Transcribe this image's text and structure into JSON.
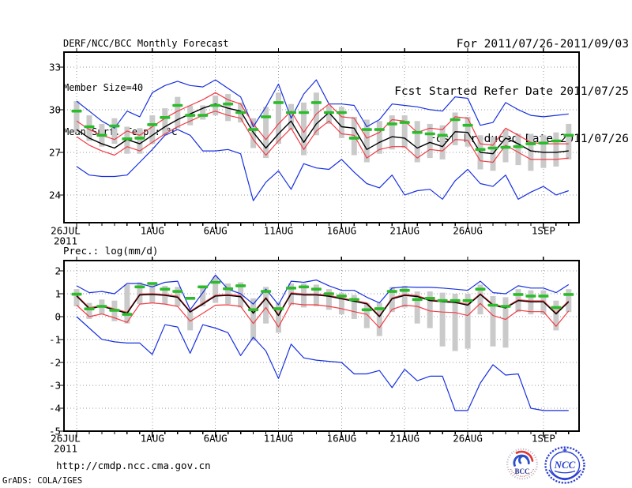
{
  "header": {
    "left_lines": [
      "DERF/NCC/BCC Monthly Forecast",
      "Member Size=40",
      "Mean Surf. Temp.: °C"
    ],
    "right_lines": [
      "For 2011/07/26-2011/09/03",
      "Fcst Started Refer Date 2011/07/25",
      "Fcst Produced Date 2011/07/26"
    ]
  },
  "footer": {
    "url": "http://cmdp.ncc.cma.gov.cn",
    "credit": "GrADS: COLA/IGES"
  },
  "logos": {
    "bcc_label": "BCC",
    "ncc_label": "NCC"
  },
  "colors": {
    "blue": "#1730e0",
    "red": "#f23c46",
    "black": "#000000",
    "green": "#2abc2a",
    "bar": "#cacaca",
    "grid": "#999999"
  },
  "chart_data": [
    {
      "id": "temp",
      "type": "line",
      "title": "Mean Surf. Temp.: °C",
      "ylabel": "°C",
      "ylim": [
        22.05,
        34.05
      ],
      "yticks": [
        24,
        27,
        30,
        33
      ],
      "ytick_labels": [
        "24",
        "27",
        "30",
        "33"
      ],
      "x_tick_days": [
        0,
        6,
        11,
        16,
        21,
        26,
        31,
        37
      ],
      "x_tick_labels": [
        "26JUL",
        "1AUG",
        "6AUG",
        "11AUG",
        "16AUG",
        "21AUG",
        "26AUG",
        "1SEP"
      ],
      "x_year_label": "2011",
      "n_points": 40,
      "grid": true,
      "series": [
        {
          "name": "ensemble-max",
          "color_key": "blue",
          "width": 1.2,
          "values": [
            30.6,
            29.9,
            29.2,
            28.7,
            29.9,
            29.5,
            31.2,
            31.7,
            32.0,
            31.7,
            31.6,
            32.1,
            31.5,
            30.9,
            28.8,
            30.2,
            31.8,
            29.4,
            31.1,
            32.1,
            30.4,
            30.4,
            30.3,
            28.8,
            29.3,
            30.4,
            30.3,
            30.2,
            30.0,
            29.9,
            30.9,
            30.8,
            28.9,
            29.1,
            30.5,
            30.0,
            29.6,
            29.5,
            29.6,
            29.7
          ]
        },
        {
          "name": "upper-band",
          "color_key": "red",
          "width": 1.2,
          "values": [
            29.2,
            28.6,
            28.2,
            27.9,
            28.5,
            28.2,
            28.8,
            29.4,
            29.9,
            30.3,
            30.7,
            31.2,
            30.7,
            30.4,
            29.0,
            27.9,
            29.0,
            29.9,
            28.4,
            29.7,
            30.4,
            29.5,
            29.4,
            28.0,
            28.4,
            29.3,
            29.2,
            28.4,
            28.7,
            28.6,
            29.5,
            29.4,
            27.6,
            27.5,
            28.7,
            28.2,
            27.7,
            27.6,
            27.6,
            27.6
          ]
        },
        {
          "name": "ensemble-mean",
          "color_key": "black",
          "width": 1.4,
          "values": [
            28.6,
            28.0,
            27.6,
            27.3,
            27.9,
            27.6,
            28.2,
            28.8,
            29.3,
            29.7,
            30.1,
            30.4,
            30.1,
            29.9,
            28.4,
            27.3,
            28.3,
            29.2,
            27.7,
            29.0,
            29.8,
            28.8,
            28.7,
            27.2,
            27.7,
            28.1,
            28.0,
            27.3,
            27.7,
            27.4,
            28.45,
            28.4,
            27.0,
            26.9,
            28.0,
            27.6,
            27.1,
            27.0,
            27.0,
            27.1
          ]
        },
        {
          "name": "lower-band",
          "color_key": "red",
          "width": 1.2,
          "values": [
            28.1,
            27.5,
            27.1,
            26.8,
            27.4,
            27.1,
            27.7,
            28.3,
            28.8,
            29.2,
            29.6,
            29.9,
            29.6,
            29.4,
            27.9,
            26.8,
            27.8,
            28.7,
            27.2,
            28.5,
            29.2,
            28.3,
            28.2,
            26.6,
            27.2,
            27.4,
            27.4,
            26.6,
            27.2,
            27.1,
            27.9,
            27.85,
            26.4,
            26.3,
            27.5,
            27.0,
            26.5,
            26.5,
            26.5,
            26.6
          ]
        },
        {
          "name": "ensemble-min",
          "color_key": "blue",
          "width": 1.2,
          "values": [
            26.0,
            25.4,
            25.3,
            25.3,
            25.4,
            26.3,
            27.2,
            28.2,
            28.6,
            28.2,
            27.1,
            27.1,
            27.2,
            26.9,
            23.6,
            24.9,
            25.7,
            24.4,
            26.2,
            25.9,
            25.8,
            26.5,
            25.6,
            24.8,
            24.5,
            25.4,
            24.0,
            24.3,
            24.4,
            23.7,
            25.0,
            25.8,
            24.8,
            24.6,
            25.4,
            23.7,
            24.2,
            24.6,
            24.0,
            24.3
          ]
        }
      ],
      "obs_dashes": {
        "name": "median-dashes",
        "color_key": "green",
        "values": [
          29.9,
          28.8,
          28.2,
          28.85,
          27.95,
          28.0,
          28.95,
          29.45,
          30.3,
          29.6,
          29.6,
          30.3,
          30.4,
          29.8,
          28.6,
          29.5,
          30.5,
          29.8,
          29.8,
          30.5,
          29.8,
          29.8,
          28.0,
          28.6,
          28.6,
          29.0,
          29.1,
          28.4,
          28.3,
          28.2,
          29.3,
          28.9,
          27.2,
          27.3,
          27.35,
          27.4,
          27.6,
          27.65,
          27.8,
          28.2
        ]
      },
      "spread_bars": {
        "hi": [
          30.6,
          29.6,
          29.0,
          29.4,
          28.8,
          28.7,
          29.6,
          30.1,
          30.9,
          30.3,
          30.3,
          31.0,
          31.1,
          30.5,
          29.4,
          30.2,
          31.2,
          30.4,
          30.5,
          31.2,
          30.3,
          30.2,
          29.5,
          29.3,
          29.2,
          29.6,
          29.6,
          29.2,
          29.0,
          28.9,
          29.8,
          29.5,
          28.2,
          28.1,
          28.6,
          28.3,
          28.3,
          28.2,
          28.4,
          29.0
        ],
        "lo": [
          28.4,
          27.8,
          27.4,
          27.6,
          26.9,
          26.9,
          27.6,
          28.2,
          28.7,
          28.9,
          29.3,
          29.6,
          29.2,
          29.1,
          27.3,
          26.6,
          27.6,
          28.6,
          26.8,
          28.2,
          29.0,
          28.0,
          26.8,
          26.3,
          26.9,
          27.2,
          27.3,
          26.3,
          26.6,
          26.5,
          27.5,
          27.4,
          25.8,
          25.7,
          26.3,
          26.1,
          25.7,
          25.9,
          26.0,
          26.5
        ]
      }
    },
    {
      "id": "precip",
      "type": "line",
      "title": "Prec.: log(mm/d)",
      "ylabel": "log(mm/d)",
      "ylim": [
        -5.0,
        2.45
      ],
      "yticks": [
        -5,
        -4,
        -3,
        -2,
        -1,
        0,
        1,
        2
      ],
      "ytick_labels": [
        "-5",
        "-4",
        "-3",
        "-2",
        "-1",
        "0",
        "1",
        "2"
      ],
      "x_tick_days": [
        0,
        6,
        11,
        16,
        21,
        26,
        31,
        37
      ],
      "x_tick_labels": [
        "26JUL",
        "1AUG",
        "6AUG",
        "11AUG",
        "16AUG",
        "21AUG",
        "26AUG",
        "1SEP"
      ],
      "x_year_label": "2011",
      "n_points": 40,
      "grid": true,
      "series": [
        {
          "name": "ensemble-max",
          "color_key": "blue",
          "width": 1.2,
          "values": [
            1.35,
            1.05,
            1.1,
            1.0,
            1.45,
            1.45,
            1.3,
            1.5,
            1.55,
            0.3,
            1.05,
            1.82,
            1.2,
            1.0,
            0.55,
            1.2,
            0.52,
            1.55,
            1.5,
            1.6,
            1.35,
            1.15,
            1.15,
            0.85,
            0.6,
            1.25,
            1.3,
            1.28,
            1.28,
            1.25,
            1.2,
            1.15,
            1.55,
            1.05,
            1.0,
            1.35,
            1.25,
            1.25,
            1.05,
            1.4
          ]
        },
        {
          "name": "upper-band",
          "color_key": "red",
          "width": 1.2,
          "values": [
            0.94,
            0.39,
            0.49,
            0.34,
            0.19,
            0.99,
            1.01,
            0.97,
            0.89,
            0.24,
            0.59,
            0.94,
            0.97,
            0.91,
            0.19,
            0.84,
            0.09,
            1.04,
            0.99,
            0.99,
            0.93,
            0.82,
            0.71,
            0.6,
            0.04,
            0.82,
            0.97,
            0.92,
            0.74,
            0.69,
            0.66,
            0.54,
            1.01,
            0.54,
            0.42,
            0.74,
            0.69,
            0.69,
            0.16,
            0.69
          ]
        },
        {
          "name": "ensemble-mean",
          "color_key": "black",
          "width": 1.4,
          "values": [
            0.9,
            0.35,
            0.45,
            0.3,
            0.15,
            0.95,
            0.97,
            0.93,
            0.85,
            0.2,
            0.55,
            0.9,
            0.93,
            0.87,
            0.15,
            0.8,
            0.05,
            1.0,
            0.95,
            0.95,
            0.89,
            0.78,
            0.67,
            0.56,
            0.0,
            0.78,
            0.93,
            0.88,
            0.7,
            0.65,
            0.62,
            0.5,
            0.97,
            0.5,
            0.38,
            0.7,
            0.65,
            0.65,
            0.12,
            0.65
          ]
        },
        {
          "name": "lower-band",
          "color_key": "red",
          "width": 1.2,
          "values": [
            0.5,
            0.0,
            0.12,
            -0.05,
            -0.25,
            0.55,
            0.6,
            0.55,
            0.45,
            -0.2,
            0.15,
            0.5,
            0.52,
            0.45,
            -0.3,
            0.4,
            -0.45,
            0.58,
            0.52,
            0.52,
            0.45,
            0.35,
            0.22,
            0.1,
            -0.48,
            0.32,
            0.5,
            0.45,
            0.25,
            0.2,
            0.18,
            0.05,
            0.58,
            0.05,
            -0.12,
            0.28,
            0.22,
            0.22,
            -0.42,
            0.25
          ]
        },
        {
          "name": "ensemble-min",
          "color_key": "blue",
          "width": 1.2,
          "values": [
            0.0,
            -0.5,
            -0.99,
            -1.1,
            -1.15,
            -1.15,
            -1.65,
            -0.35,
            -0.45,
            -1.6,
            -0.35,
            -0.5,
            -0.7,
            -1.7,
            -0.9,
            -1.5,
            -2.7,
            -1.2,
            -1.8,
            -1.9,
            -1.95,
            -2.0,
            -2.5,
            -2.5,
            -2.35,
            -3.1,
            -2.3,
            -2.8,
            -2.6,
            -2.6,
            -4.1,
            -4.1,
            -2.9,
            -2.1,
            -2.55,
            -2.5,
            -4.0,
            -4.1,
            -4.1,
            -4.1
          ]
        }
      ],
      "obs_dashes": {
        "name": "median-dashes",
        "color_key": "green",
        "values": [
          0.98,
          0.34,
          0.45,
          0.28,
          0.1,
          1.3,
          1.45,
          1.2,
          1.1,
          0.8,
          1.3,
          1.5,
          1.22,
          1.35,
          0.3,
          1.1,
          0.35,
          1.25,
          1.3,
          1.2,
          1.0,
          0.9,
          0.75,
          0.3,
          0.35,
          1.1,
          1.15,
          0.75,
          0.8,
          0.7,
          0.7,
          0.7,
          1.2,
          0.5,
          0.45,
          0.97,
          0.9,
          0.9,
          0.4,
          0.97
        ]
      },
      "spread_bars": {
        "hi": [
          1.2,
          0.6,
          0.75,
          0.7,
          1.4,
          1.5,
          1.5,
          1.35,
          1.3,
          0.3,
          1.3,
          1.75,
          1.45,
          1.5,
          0.8,
          1.3,
          0.6,
          1.45,
          1.45,
          1.4,
          1.2,
          1.05,
          0.95,
          0.6,
          0.6,
          1.3,
          1.35,
          1.1,
          1.1,
          1.05,
          1.0,
          1.0,
          1.4,
          0.9,
          0.85,
          1.2,
          1.15,
          1.15,
          0.7,
          1.2
        ],
        "lo": [
          0.45,
          -0.1,
          0.1,
          -0.2,
          -0.3,
          0.55,
          0.6,
          0.55,
          0.45,
          -0.6,
          0.45,
          0.6,
          0.55,
          0.4,
          -1.05,
          -0.3,
          -0.7,
          0.5,
          0.4,
          0.45,
          0.3,
          0.1,
          -0.1,
          -0.5,
          -0.85,
          0.2,
          0.4,
          -0.3,
          -0.5,
          -1.3,
          -1.5,
          -1.4,
          0.1,
          -1.3,
          -1.35,
          0.2,
          0.1,
          0.1,
          -0.6,
          0.2
        ]
      }
    }
  ]
}
